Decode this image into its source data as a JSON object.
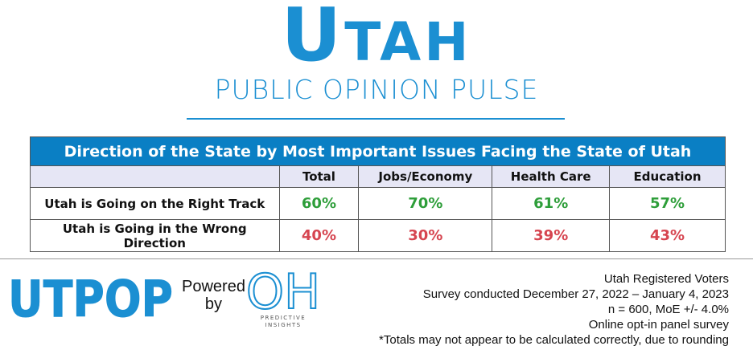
{
  "header": {
    "title": "UTAH",
    "subtitle": "PUBLIC OPINION PULSE"
  },
  "table": {
    "title": "Direction of the State by Most Important Issues Facing the State of Utah",
    "columns": [
      "",
      "Total",
      "Jobs/Economy",
      "Health Care",
      "Education"
    ],
    "rows": [
      [
        "Utah is Going on the Right Track",
        "60%",
        "70%",
        "61%",
        "57%"
      ],
      [
        "Utah is Going in the Wrong Direction",
        "40%",
        "30%",
        "39%",
        "43%"
      ]
    ]
  },
  "footer": {
    "logo": "UTPOP",
    "powered": "Powered",
    "by": "by",
    "partner_logo": "OH",
    "partner_name": "PREDICTIVE",
    "partner_name2": "INSIGHTS",
    "notes": [
      "Utah Registered Voters",
      "Survey conducted December 27, 2022 – January 4, 2023",
      "n = 600, MoE +/- 4.0%",
      "Online opt-in panel survey",
      "*Totals may not appear to be calculated correctly, due to rounding"
    ]
  }
}
